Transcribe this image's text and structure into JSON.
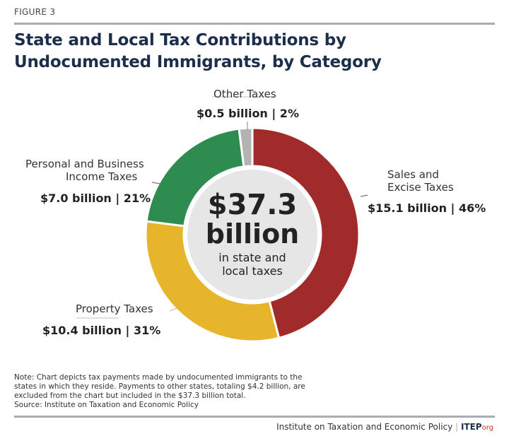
{
  "figure_label": "FIGURE 3",
  "chart_data": {
    "type": "pie",
    "subtype": "donut",
    "title": "State and Local Tax Contributions by Undocumented Immigrants, by Category",
    "center_label": {
      "value": "$37.3",
      "unit": "billion",
      "caption_line1": "in state and",
      "caption_line2": "local taxes"
    },
    "total_billion": 37.3,
    "slices": [
      {
        "label_lines": [
          "Sales and",
          "Excise Taxes"
        ],
        "value_billion": 15.1,
        "percent": 46,
        "value_label": "$15.1 billion | 46%",
        "color": "#a12b2b"
      },
      {
        "label_lines": [
          "Property Taxes"
        ],
        "value_billion": 10.4,
        "percent": 31,
        "value_label": "$10.4 billion | 31%",
        "color": "#e7b52c"
      },
      {
        "label_lines": [
          "Personal and Business",
          "Income Taxes"
        ],
        "value_billion": 7.0,
        "percent": 21,
        "value_label": "$7.0 billion | 21%",
        "color": "#2f8c50"
      },
      {
        "label_lines": [
          "Other Taxes"
        ],
        "value_billion": 0.5,
        "percent": 2,
        "value_label": "$0.5 billion | 2%",
        "color": "#b3b3b3"
      }
    ],
    "center_color": "#e6e6e6"
  },
  "note": "Note: Chart depicts tax payments made by undocumented immigrants to the states in which they reside. Payments to other states, totaling $4.2 billion, are excluded from the chart but included in the $37.3 billion total.",
  "source": "Source: Institute on Taxation and Economic Policy",
  "footer": {
    "org_name": "Institute on Taxation and Economic Policy",
    "separator": "|",
    "logo_main": "ITEP",
    "logo_suffix": "org"
  }
}
